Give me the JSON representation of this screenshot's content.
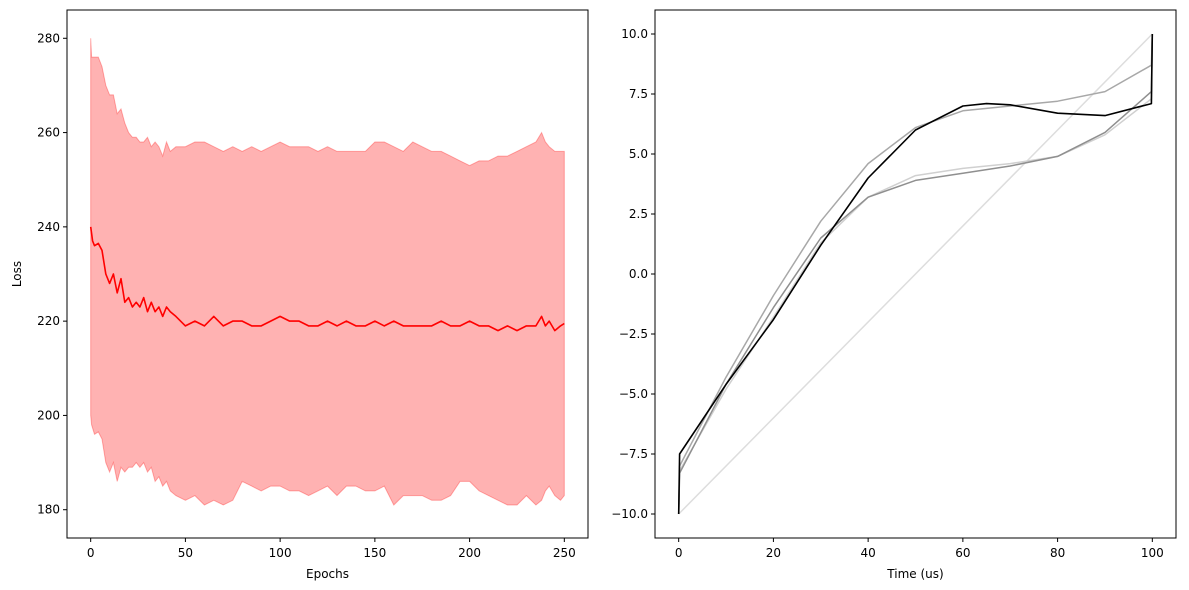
{
  "chart_data": [
    {
      "type": "area",
      "title": "",
      "xlabel": "Epochs",
      "ylabel": "Loss",
      "xlim": [
        -12.5,
        262.5
      ],
      "ylim": [
        174,
        286
      ],
      "xticks": [
        0,
        50,
        100,
        150,
        200,
        250
      ],
      "yticks": [
        180,
        200,
        220,
        240,
        260,
        280
      ],
      "grid": false,
      "legend": "none",
      "colors": {
        "mean": "#ff0000",
        "band": "#ff0000"
      },
      "series": [
        {
          "kind": "line",
          "x": [
            0,
            1,
            2,
            4,
            6,
            8,
            10,
            12,
            14,
            16,
            18,
            20,
            22,
            24,
            26,
            28,
            30,
            32,
            34,
            36,
            38,
            40,
            42,
            45,
            50,
            55,
            60,
            65,
            70,
            75,
            80,
            85,
            90,
            95,
            100,
            105,
            110,
            115,
            120,
            125,
            130,
            135,
            140,
            145,
            150,
            155,
            160,
            165,
            170,
            175,
            180,
            185,
            190,
            195,
            200,
            205,
            210,
            215,
            220,
            225,
            230,
            235,
            238,
            240,
            242,
            245,
            248,
            250
          ],
          "y": [
            240,
            237,
            236,
            236.5,
            235,
            230,
            228,
            230,
            226,
            229,
            224,
            225,
            223,
            224,
            223,
            225,
            222,
            224,
            222,
            223,
            221,
            223,
            222,
            221,
            219,
            220,
            219,
            221,
            219,
            220,
            220,
            219,
            219,
            220,
            221,
            220,
            220,
            219,
            219,
            220,
            219,
            220,
            219,
            219,
            220,
            219,
            220,
            219,
            219,
            219,
            219,
            220,
            219,
            219,
            220,
            219,
            219,
            218,
            219,
            218,
            219,
            219,
            221,
            219,
            220,
            218,
            219,
            219.5
          ]
        },
        {
          "kind": "band",
          "x": [
            0,
            0.5,
            2,
            4,
            6,
            8,
            10,
            12,
            14,
            16,
            18,
            20,
            22,
            24,
            26,
            28,
            30,
            32,
            34,
            36,
            38,
            40,
            42,
            45,
            50,
            55,
            60,
            65,
            70,
            75,
            80,
            85,
            90,
            95,
            100,
            105,
            110,
            115,
            120,
            125,
            130,
            135,
            140,
            145,
            150,
            155,
            160,
            165,
            170,
            175,
            180,
            185,
            190,
            195,
            200,
            205,
            210,
            215,
            220,
            225,
            230,
            235,
            238,
            240,
            242,
            245,
            248,
            250
          ],
          "lower": [
            200,
            198,
            196,
            196.5,
            195,
            190,
            188,
            190,
            186,
            189,
            188,
            189,
            189,
            190,
            189,
            190,
            188,
            189,
            186,
            187,
            185,
            186,
            184,
            183,
            182,
            183,
            181,
            182,
            181,
            182,
            186,
            185,
            184,
            185,
            185,
            184,
            184,
            183,
            184,
            185,
            183,
            185,
            185,
            184,
            184,
            185,
            181,
            183,
            183,
            183,
            182,
            182,
            183,
            186,
            186,
            184,
            183,
            182,
            181,
            181,
            183,
            181,
            182,
            184,
            185,
            183,
            182,
            183
          ],
          "upper": [
            280,
            276,
            276,
            276,
            274,
            270,
            268,
            268,
            264,
            265,
            262,
            260,
            259,
            259,
            258,
            258,
            259,
            257,
            258,
            257,
            255,
            258,
            256,
            257,
            257,
            258,
            258,
            257,
            256,
            257,
            256,
            257,
            256,
            257,
            258,
            257,
            257,
            257,
            256,
            257,
            256,
            256,
            256,
            256,
            258,
            258,
            257,
            256,
            258,
            257,
            256,
            256,
            255,
            254,
            253,
            254,
            254,
            255,
            255,
            256,
            257,
            258,
            260,
            258,
            257,
            256,
            256,
            256
          ]
        }
      ]
    },
    {
      "type": "line",
      "title": "",
      "xlabel": "Time (us)",
      "ylabel": "",
      "xlim": [
        -5,
        105
      ],
      "ylim": [
        -11,
        11
      ],
      "xticks": [
        0,
        20,
        40,
        60,
        80,
        100
      ],
      "yticks": [
        -10.0,
        -7.5,
        -5.0,
        -2.5,
        0.0,
        2.5,
        5.0,
        7.5,
        10.0
      ],
      "ytick_labels": [
        "−10.0",
        "−7.5",
        "−5.0",
        "−2.5",
        "0.0",
        "2.5",
        "5.0",
        "7.5",
        "10.0"
      ],
      "grid": false,
      "legend": "none",
      "series": [
        {
          "color": "#dddddd",
          "x": [
            0,
            100
          ],
          "y": [
            -10,
            10
          ]
        },
        {
          "color": "#d0d0d0",
          "x": [
            0,
            0.2,
            10,
            20,
            30,
            40,
            50,
            60,
            70,
            80,
            90,
            99.8,
            100
          ],
          "y": [
            -10,
            -8.2,
            -4.8,
            -1.8,
            1.3,
            3.2,
            4.1,
            4.4,
            4.6,
            4.9,
            5.8,
            7.3,
            10
          ]
        },
        {
          "color": "#a8a8a8",
          "x": [
            0,
            0.2,
            10,
            20,
            30,
            40,
            50,
            60,
            70,
            80,
            90,
            99.8,
            100
          ],
          "y": [
            -10,
            -8.0,
            -4.3,
            -0.9,
            2.2,
            4.6,
            6.1,
            6.8,
            7.0,
            7.2,
            7.6,
            8.7,
            10
          ]
        },
        {
          "color": "#8f8f8f",
          "x": [
            0,
            0.2,
            10,
            20,
            30,
            40,
            50,
            60,
            70,
            80,
            90,
            99.8,
            100
          ],
          "y": [
            -10,
            -8.3,
            -4.6,
            -1.4,
            1.5,
            3.2,
            3.9,
            4.2,
            4.5,
            4.9,
            5.9,
            7.6,
            10
          ]
        },
        {
          "color": "#000000",
          "x": [
            0,
            0.2,
            10,
            20,
            30,
            40,
            50,
            60,
            65,
            70,
            80,
            90,
            99.8,
            100
          ],
          "y": [
            -10,
            -7.5,
            -4.6,
            -1.9,
            1.2,
            4.0,
            6.0,
            7.0,
            7.1,
            7.05,
            6.7,
            6.6,
            7.1,
            10
          ]
        }
      ]
    }
  ]
}
